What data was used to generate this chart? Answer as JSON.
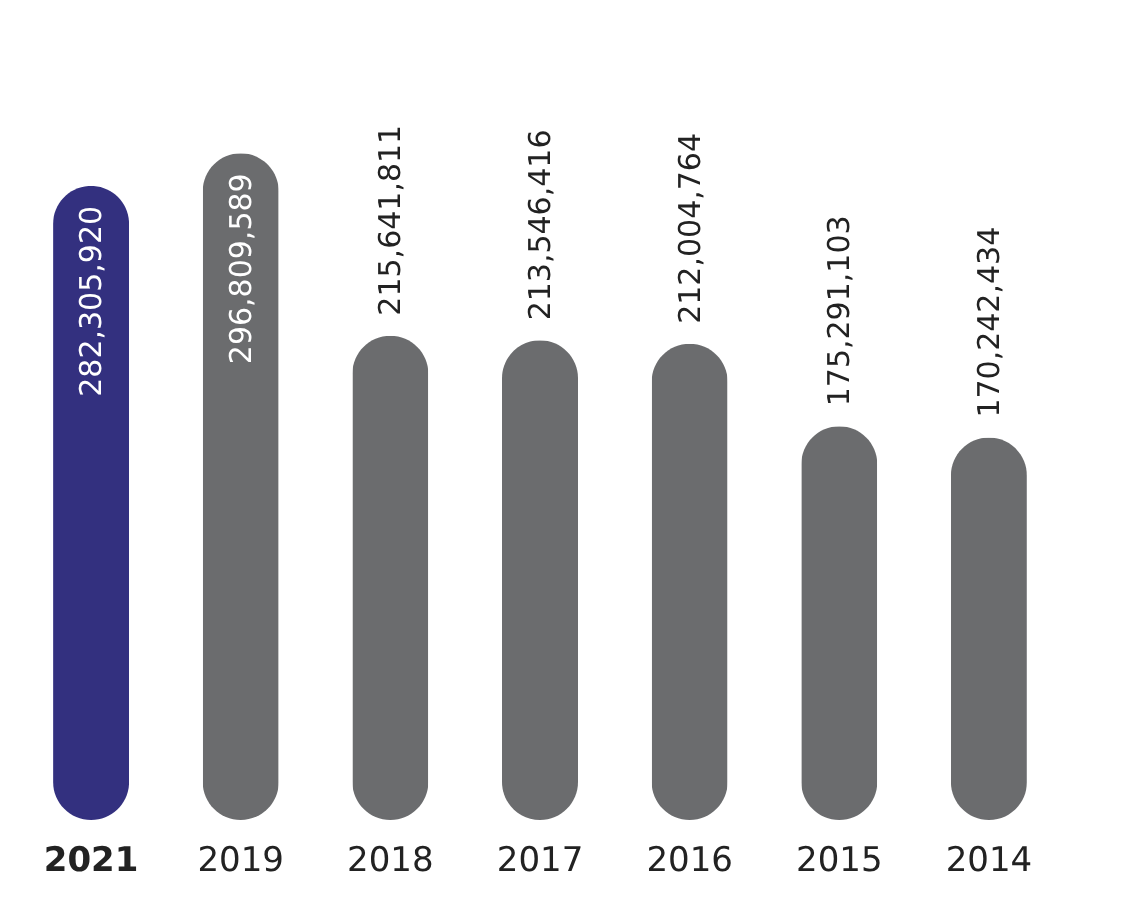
{
  "chart_data": {
    "type": "bar",
    "categories": [
      "2021",
      "2019",
      "2018",
      "2017",
      "2016",
      "2015",
      "2014"
    ],
    "values": [
      282305920,
      296809589,
      215641811,
      213546416,
      212004764,
      175291103,
      170242434
    ],
    "colors": [
      "#33307f",
      "#6b6c6e",
      "#6b6c6e",
      "#6b6c6e",
      "#6b6c6e",
      "#6b6c6e",
      "#6b6c6e"
    ],
    "value_labels": [
      "282,305,920",
      "296,809,589",
      "215,641,811",
      "213,546,416",
      "212,004,764",
      "175,291,103",
      "170,242,434"
    ],
    "grid": false,
    "legend": false
  }
}
